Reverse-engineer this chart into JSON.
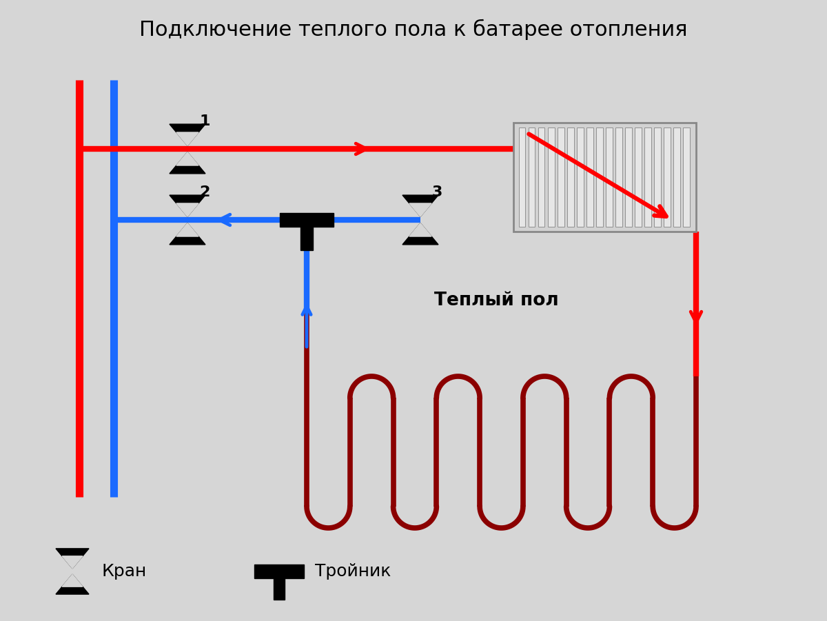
{
  "title": "Подключение теплого пола к батарее отопления",
  "bg_color": "#d6d6d6",
  "red_color": "#ff0000",
  "blue_color": "#1a6aff",
  "dark_red_color": "#8b0000",
  "black_color": "#000000",
  "white_color": "#ffffff",
  "gray_light": "#d8d8d8",
  "gray_mid": "#999999",
  "legend_kran": "Кран",
  "legend_tronik": "Тройник",
  "label_warm_floor": "Теплый пол",
  "valve_label_1": "1",
  "valve_label_2": "2",
  "valve_label_3": "3"
}
